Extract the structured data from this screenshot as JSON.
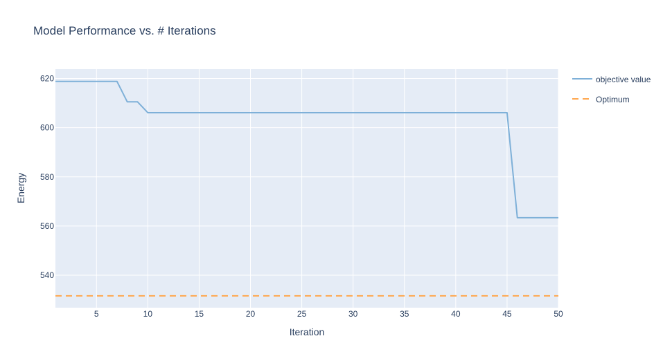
{
  "chart_data": {
    "type": "line",
    "title": "Model Performance vs. # Iterations",
    "xlabel": "Iteration",
    "ylabel": "Energy",
    "xlim": [
      1,
      50
    ],
    "ylim": [
      526.8,
      623.8
    ],
    "xticks": [
      5,
      10,
      15,
      20,
      25,
      30,
      35,
      40,
      45,
      50
    ],
    "yticks": [
      540,
      560,
      580,
      600,
      620
    ],
    "grid": true,
    "legend_position": "top-right",
    "series": [
      {
        "name": "objective value",
        "color": "#7eb0d8",
        "dash": "solid",
        "x": [
          1,
          2,
          3,
          4,
          5,
          6,
          7,
          8,
          9,
          10,
          11,
          12,
          13,
          14,
          15,
          16,
          17,
          18,
          19,
          20,
          21,
          22,
          23,
          24,
          25,
          26,
          27,
          28,
          29,
          30,
          31,
          32,
          33,
          34,
          35,
          36,
          37,
          38,
          39,
          40,
          41,
          42,
          43,
          44,
          45,
          46,
          47,
          48,
          49,
          50
        ],
        "y": [
          618.8,
          618.8,
          618.8,
          618.8,
          618.8,
          618.8,
          618.8,
          610.5,
          610.5,
          606.1,
          606.1,
          606.1,
          606.1,
          606.1,
          606.1,
          606.1,
          606.1,
          606.1,
          606.1,
          606.1,
          606.1,
          606.1,
          606.1,
          606.1,
          606.1,
          606.1,
          606.1,
          606.1,
          606.1,
          606.1,
          606.1,
          606.1,
          606.1,
          606.1,
          606.1,
          606.1,
          606.1,
          606.1,
          606.1,
          606.1,
          606.1,
          606.1,
          606.1,
          606.1,
          606.1,
          563.4,
          563.4,
          563.4,
          563.4,
          563.4
        ]
      },
      {
        "name": "Optimum",
        "color": "#ffa64d",
        "dash": "dashed",
        "x": [
          1,
          50
        ],
        "y": [
          531.6,
          531.6
        ]
      }
    ]
  }
}
